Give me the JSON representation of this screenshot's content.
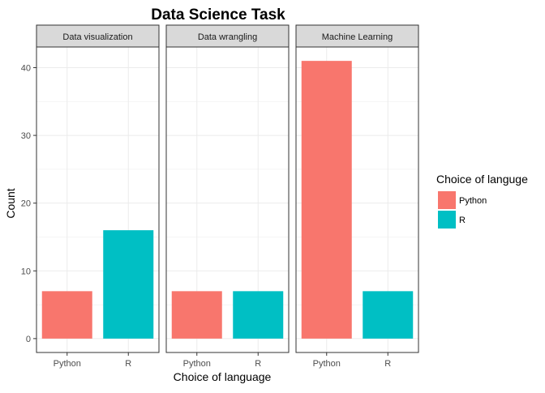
{
  "chart_data": {
    "type": "bar",
    "title": "Data Science Task",
    "xlabel": "Choice of language",
    "ylabel": "Count",
    "ylim": [
      -2.05,
      43.05
    ],
    "yticks": [
      0,
      10,
      20,
      30,
      40
    ],
    "grid": true,
    "legend": {
      "title": "Choice of languge",
      "position": "right",
      "entries": [
        {
          "name": "Python",
          "color": "#F8766D"
        },
        {
          "name": "R",
          "color": "#00BFC4"
        }
      ]
    },
    "categories": [
      "Python",
      "R"
    ],
    "facets": [
      {
        "label": "Data visualization",
        "values": [
          7,
          16
        ]
      },
      {
        "label": "Data wrangling",
        "values": [
          7,
          7
        ]
      },
      {
        "label": "Machine Learning",
        "values": [
          41,
          7
        ]
      }
    ],
    "colors": {
      "python": "#F8766D",
      "r": "#00BFC4",
      "strip_fill": "#D9D9D9",
      "panel_border": "#333333",
      "grid": "#EBEBEB"
    }
  }
}
